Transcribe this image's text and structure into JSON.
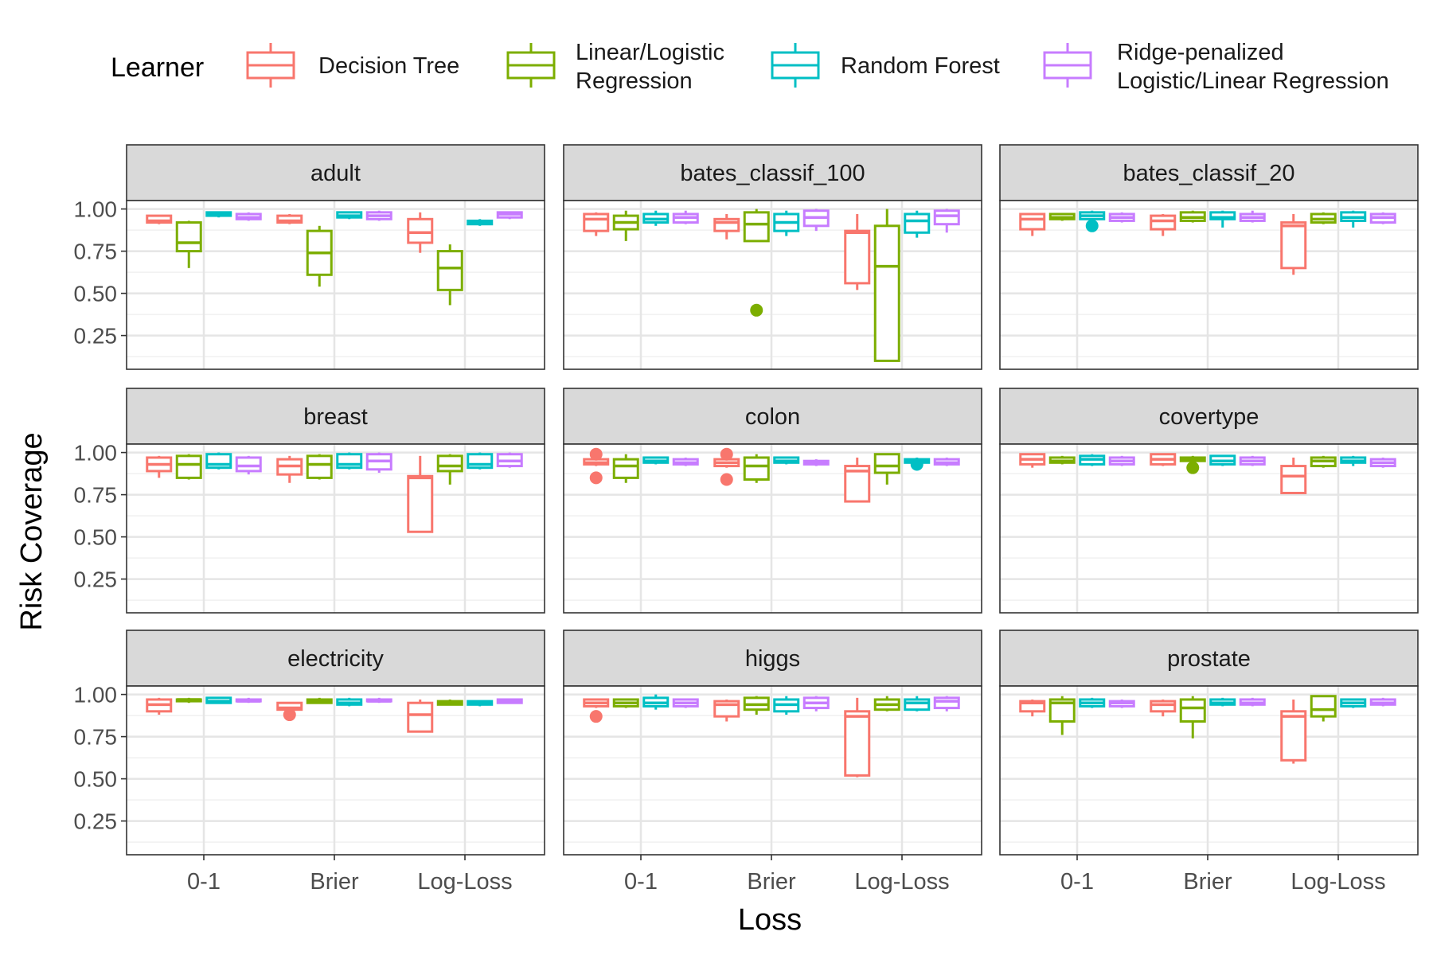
{
  "chart_data": {
    "type": "boxplot",
    "xlabel": "Loss",
    "ylabel": "Risk Coverage",
    "legend": {
      "title": "Learner",
      "position": "top",
      "entries": [
        {
          "label": "Decision Tree",
          "color": "#F8766D"
        },
        {
          "label": "Linear/Logistic\nRegression",
          "color": "#7CAE00"
        },
        {
          "label": "Random Forest",
          "color": "#00BFC4"
        },
        {
          "label": "Ridge-penalized\nLogistic/Linear Regression",
          "color": "#C77CFF"
        }
      ]
    },
    "categories": [
      "0-1",
      "Brier",
      "Log-Loss"
    ],
    "y_ticks": [
      0.25,
      0.5,
      0.75,
      1.0
    ],
    "y_tick_labels": [
      "0.25",
      "0.50",
      "0.75",
      "1.00"
    ],
    "ylim": [
      0.05,
      1.05
    ],
    "grid": true,
    "facet_cols": 3,
    "panels": [
      {
        "name": "adult",
        "boxes": [
          [
            [
              0.91,
              0.92,
              0.93,
              0.96,
              0.96
            ],
            [
              0.65,
              0.75,
              0.8,
              0.92,
              0.93
            ],
            [
              0.95,
              0.96,
              0.97,
              0.98,
              0.98
            ],
            [
              0.93,
              0.94,
              0.95,
              0.97,
              0.98
            ]
          ],
          [
            [
              0.91,
              0.92,
              0.93,
              0.96,
              0.97
            ],
            [
              0.54,
              0.61,
              0.74,
              0.87,
              0.9
            ],
            [
              0.94,
              0.95,
              0.96,
              0.98,
              0.98
            ],
            [
              0.93,
              0.94,
              0.96,
              0.98,
              0.99
            ]
          ],
          [
            [
              0.74,
              0.8,
              0.86,
              0.94,
              0.98
            ],
            [
              0.43,
              0.52,
              0.65,
              0.75,
              0.79
            ],
            [
              0.9,
              0.91,
              0.92,
              0.93,
              0.94
            ],
            [
              0.94,
              0.95,
              0.97,
              0.98,
              0.98
            ]
          ]
        ],
        "outliers": []
      },
      {
        "name": "bates_classif_100",
        "boxes": [
          [
            [
              0.84,
              0.87,
              0.94,
              0.97,
              0.98
            ],
            [
              0.81,
              0.88,
              0.92,
              0.96,
              0.99
            ],
            [
              0.9,
              0.92,
              0.94,
              0.97,
              0.99
            ],
            [
              0.91,
              0.92,
              0.95,
              0.97,
              0.99
            ]
          ],
          [
            [
              0.82,
              0.87,
              0.92,
              0.94,
              0.97
            ],
            [
              0.81,
              0.81,
              0.91,
              0.98,
              1.0
            ],
            [
              0.84,
              0.87,
              0.92,
              0.97,
              0.99
            ],
            [
              0.87,
              0.9,
              0.95,
              0.99,
              1.0
            ]
          ],
          [
            [
              0.52,
              0.56,
              0.86,
              0.87,
              0.97
            ],
            [
              0.1,
              0.1,
              0.66,
              0.9,
              1.0
            ],
            [
              0.83,
              0.86,
              0.93,
              0.97,
              0.99
            ],
            [
              0.86,
              0.91,
              0.96,
              0.99,
              1.0
            ]
          ]
        ],
        "outliers": [
          {
            "group": 1,
            "learner": 1,
            "value": 0.4
          }
        ]
      },
      {
        "name": "bates_classif_20",
        "boxes": [
          [
            [
              0.84,
              0.88,
              0.94,
              0.97,
              0.97
            ],
            [
              0.93,
              0.94,
              0.95,
              0.97,
              0.97
            ],
            [
              0.93,
              0.94,
              0.96,
              0.98,
              0.99
            ],
            [
              0.92,
              0.93,
              0.95,
              0.97,
              0.98
            ]
          ],
          [
            [
              0.84,
              0.88,
              0.93,
              0.96,
              0.97
            ],
            [
              0.92,
              0.93,
              0.95,
              0.98,
              0.99
            ],
            [
              0.89,
              0.94,
              0.95,
              0.98,
              0.99
            ],
            [
              0.92,
              0.93,
              0.95,
              0.97,
              0.99
            ]
          ],
          [
            [
              0.61,
              0.65,
              0.9,
              0.92,
              0.97
            ],
            [
              0.91,
              0.92,
              0.94,
              0.97,
              0.98
            ],
            [
              0.89,
              0.93,
              0.95,
              0.98,
              0.99
            ],
            [
              0.91,
              0.92,
              0.95,
              0.97,
              0.98
            ]
          ]
        ],
        "outliers": [
          {
            "group": 0,
            "learner": 2,
            "value": 0.9
          }
        ]
      },
      {
        "name": "breast",
        "boxes": [
          [
            [
              0.85,
              0.89,
              0.93,
              0.97,
              0.98
            ],
            [
              0.84,
              0.85,
              0.93,
              0.98,
              0.99
            ],
            [
              0.9,
              0.91,
              0.93,
              0.99,
              1.0
            ],
            [
              0.87,
              0.89,
              0.92,
              0.97,
              0.98
            ]
          ],
          [
            [
              0.82,
              0.87,
              0.92,
              0.96,
              0.98
            ],
            [
              0.84,
              0.85,
              0.93,
              0.98,
              0.99
            ],
            [
              0.9,
              0.91,
              0.93,
              0.99,
              1.0
            ],
            [
              0.88,
              0.9,
              0.95,
              0.99,
              1.0
            ]
          ],
          [
            [
              0.53,
              0.53,
              0.85,
              0.86,
              0.98
            ],
            [
              0.81,
              0.89,
              0.92,
              0.98,
              0.99
            ],
            [
              0.9,
              0.91,
              0.93,
              0.99,
              1.0
            ],
            [
              0.91,
              0.92,
              0.95,
              0.99,
              1.0
            ]
          ]
        ],
        "outliers": []
      },
      {
        "name": "colon",
        "boxes": [
          [
            [
              0.92,
              0.93,
              0.94,
              0.96,
              0.97
            ],
            [
              0.82,
              0.85,
              0.92,
              0.96,
              0.99
            ],
            [
              0.93,
              0.94,
              0.95,
              0.97,
              0.97
            ],
            [
              0.92,
              0.93,
              0.94,
              0.96,
              0.97
            ]
          ],
          [
            [
              0.91,
              0.92,
              0.94,
              0.96,
              0.97
            ],
            [
              0.82,
              0.84,
              0.92,
              0.97,
              0.99
            ],
            [
              0.93,
              0.94,
              0.95,
              0.97,
              0.97
            ],
            [
              0.92,
              0.93,
              0.94,
              0.95,
              0.96
            ]
          ],
          [
            [
              0.71,
              0.71,
              0.89,
              0.92,
              0.97
            ],
            [
              0.81,
              0.88,
              0.92,
              0.99,
              0.99
            ],
            [
              0.93,
              0.94,
              0.95,
              0.96,
              0.97
            ],
            [
              0.92,
              0.93,
              0.94,
              0.96,
              0.97
            ]
          ]
        ],
        "outliers": [
          {
            "group": 0,
            "learner": 0,
            "value": 0.99
          },
          {
            "group": 0,
            "learner": 0,
            "value": 0.85
          },
          {
            "group": 1,
            "learner": 0,
            "value": 0.99
          },
          {
            "group": 1,
            "learner": 0,
            "value": 0.84
          },
          {
            "group": 2,
            "learner": 2,
            "value": 0.93
          }
        ]
      },
      {
        "name": "covertype",
        "boxes": [
          [
            [
              0.91,
              0.93,
              0.96,
              0.99,
              0.99
            ],
            [
              0.93,
              0.94,
              0.95,
              0.97,
              0.98
            ],
            [
              0.92,
              0.93,
              0.96,
              0.98,
              0.99
            ],
            [
              0.92,
              0.93,
              0.95,
              0.97,
              0.98
            ]
          ],
          [
            [
              0.92,
              0.93,
              0.96,
              0.99,
              0.99
            ],
            [
              0.94,
              0.95,
              0.96,
              0.97,
              0.98
            ],
            [
              0.92,
              0.93,
              0.95,
              0.98,
              0.98
            ],
            [
              0.92,
              0.93,
              0.95,
              0.97,
              0.98
            ]
          ],
          [
            [
              0.76,
              0.76,
              0.86,
              0.92,
              0.97
            ],
            [
              0.91,
              0.92,
              0.95,
              0.97,
              0.98
            ],
            [
              0.92,
              0.94,
              0.95,
              0.97,
              0.98
            ],
            [
              0.91,
              0.92,
              0.94,
              0.96,
              0.97
            ]
          ]
        ],
        "outliers": [
          {
            "group": 1,
            "learner": 1,
            "value": 0.91
          }
        ]
      },
      {
        "name": "electricity",
        "boxes": [
          [
            [
              0.88,
              0.9,
              0.94,
              0.97,
              0.98
            ],
            [
              0.95,
              0.96,
              0.97,
              0.97,
              0.98
            ],
            [
              0.95,
              0.95,
              0.96,
              0.98,
              0.98
            ],
            [
              0.95,
              0.96,
              0.96,
              0.97,
              0.98
            ]
          ],
          [
            [
              0.9,
              0.91,
              0.92,
              0.95,
              0.95
            ],
            [
              0.95,
              0.95,
              0.96,
              0.97,
              0.98
            ],
            [
              0.93,
              0.94,
              0.95,
              0.97,
              0.98
            ],
            [
              0.95,
              0.96,
              0.96,
              0.97,
              0.98
            ]
          ],
          [
            [
              0.78,
              0.78,
              0.88,
              0.95,
              0.97
            ],
            [
              0.94,
              0.94,
              0.95,
              0.96,
              0.97
            ],
            [
              0.93,
              0.94,
              0.95,
              0.96,
              0.96
            ],
            [
              0.95,
              0.95,
              0.96,
              0.97,
              0.97
            ]
          ]
        ],
        "outliers": [
          {
            "group": 1,
            "learner": 0,
            "value": 0.88
          }
        ]
      },
      {
        "name": "higgs",
        "boxes": [
          [
            [
              0.92,
              0.93,
              0.95,
              0.97,
              0.97
            ],
            [
              0.92,
              0.93,
              0.95,
              0.97,
              0.97
            ],
            [
              0.91,
              0.93,
              0.95,
              0.98,
              1.0
            ],
            [
              0.92,
              0.93,
              0.95,
              0.97,
              0.97
            ]
          ],
          [
            [
              0.84,
              0.87,
              0.94,
              0.96,
              0.97
            ],
            [
              0.88,
              0.91,
              0.94,
              0.98,
              0.99
            ],
            [
              0.88,
              0.9,
              0.94,
              0.97,
              0.99
            ],
            [
              0.9,
              0.92,
              0.95,
              0.98,
              0.99
            ]
          ],
          [
            [
              0.51,
              0.52,
              0.87,
              0.9,
              0.98
            ],
            [
              0.9,
              0.91,
              0.94,
              0.97,
              0.99
            ],
            [
              0.9,
              0.91,
              0.95,
              0.97,
              0.99
            ],
            [
              0.9,
              0.92,
              0.96,
              0.98,
              0.99
            ]
          ]
        ],
        "outliers": [
          {
            "group": 0,
            "learner": 0,
            "value": 0.87
          }
        ]
      },
      {
        "name": "prostate",
        "boxes": [
          [
            [
              0.87,
              0.9,
              0.95,
              0.96,
              0.97
            ],
            [
              0.76,
              0.84,
              0.95,
              0.97,
              0.99
            ],
            [
              0.92,
              0.93,
              0.95,
              0.97,
              0.98
            ],
            [
              0.92,
              0.93,
              0.95,
              0.96,
              0.97
            ]
          ],
          [
            [
              0.87,
              0.9,
              0.94,
              0.96,
              0.97
            ],
            [
              0.74,
              0.84,
              0.92,
              0.97,
              0.99
            ],
            [
              0.93,
              0.94,
              0.95,
              0.97,
              0.98
            ],
            [
              0.93,
              0.94,
              0.95,
              0.97,
              0.98
            ]
          ],
          [
            [
              0.59,
              0.61,
              0.87,
              0.9,
              0.97
            ],
            [
              0.84,
              0.87,
              0.91,
              0.99,
              0.99
            ],
            [
              0.92,
              0.93,
              0.95,
              0.97,
              0.97
            ],
            [
              0.93,
              0.94,
              0.95,
              0.97,
              0.98
            ]
          ]
        ],
        "outliers": []
      }
    ]
  }
}
